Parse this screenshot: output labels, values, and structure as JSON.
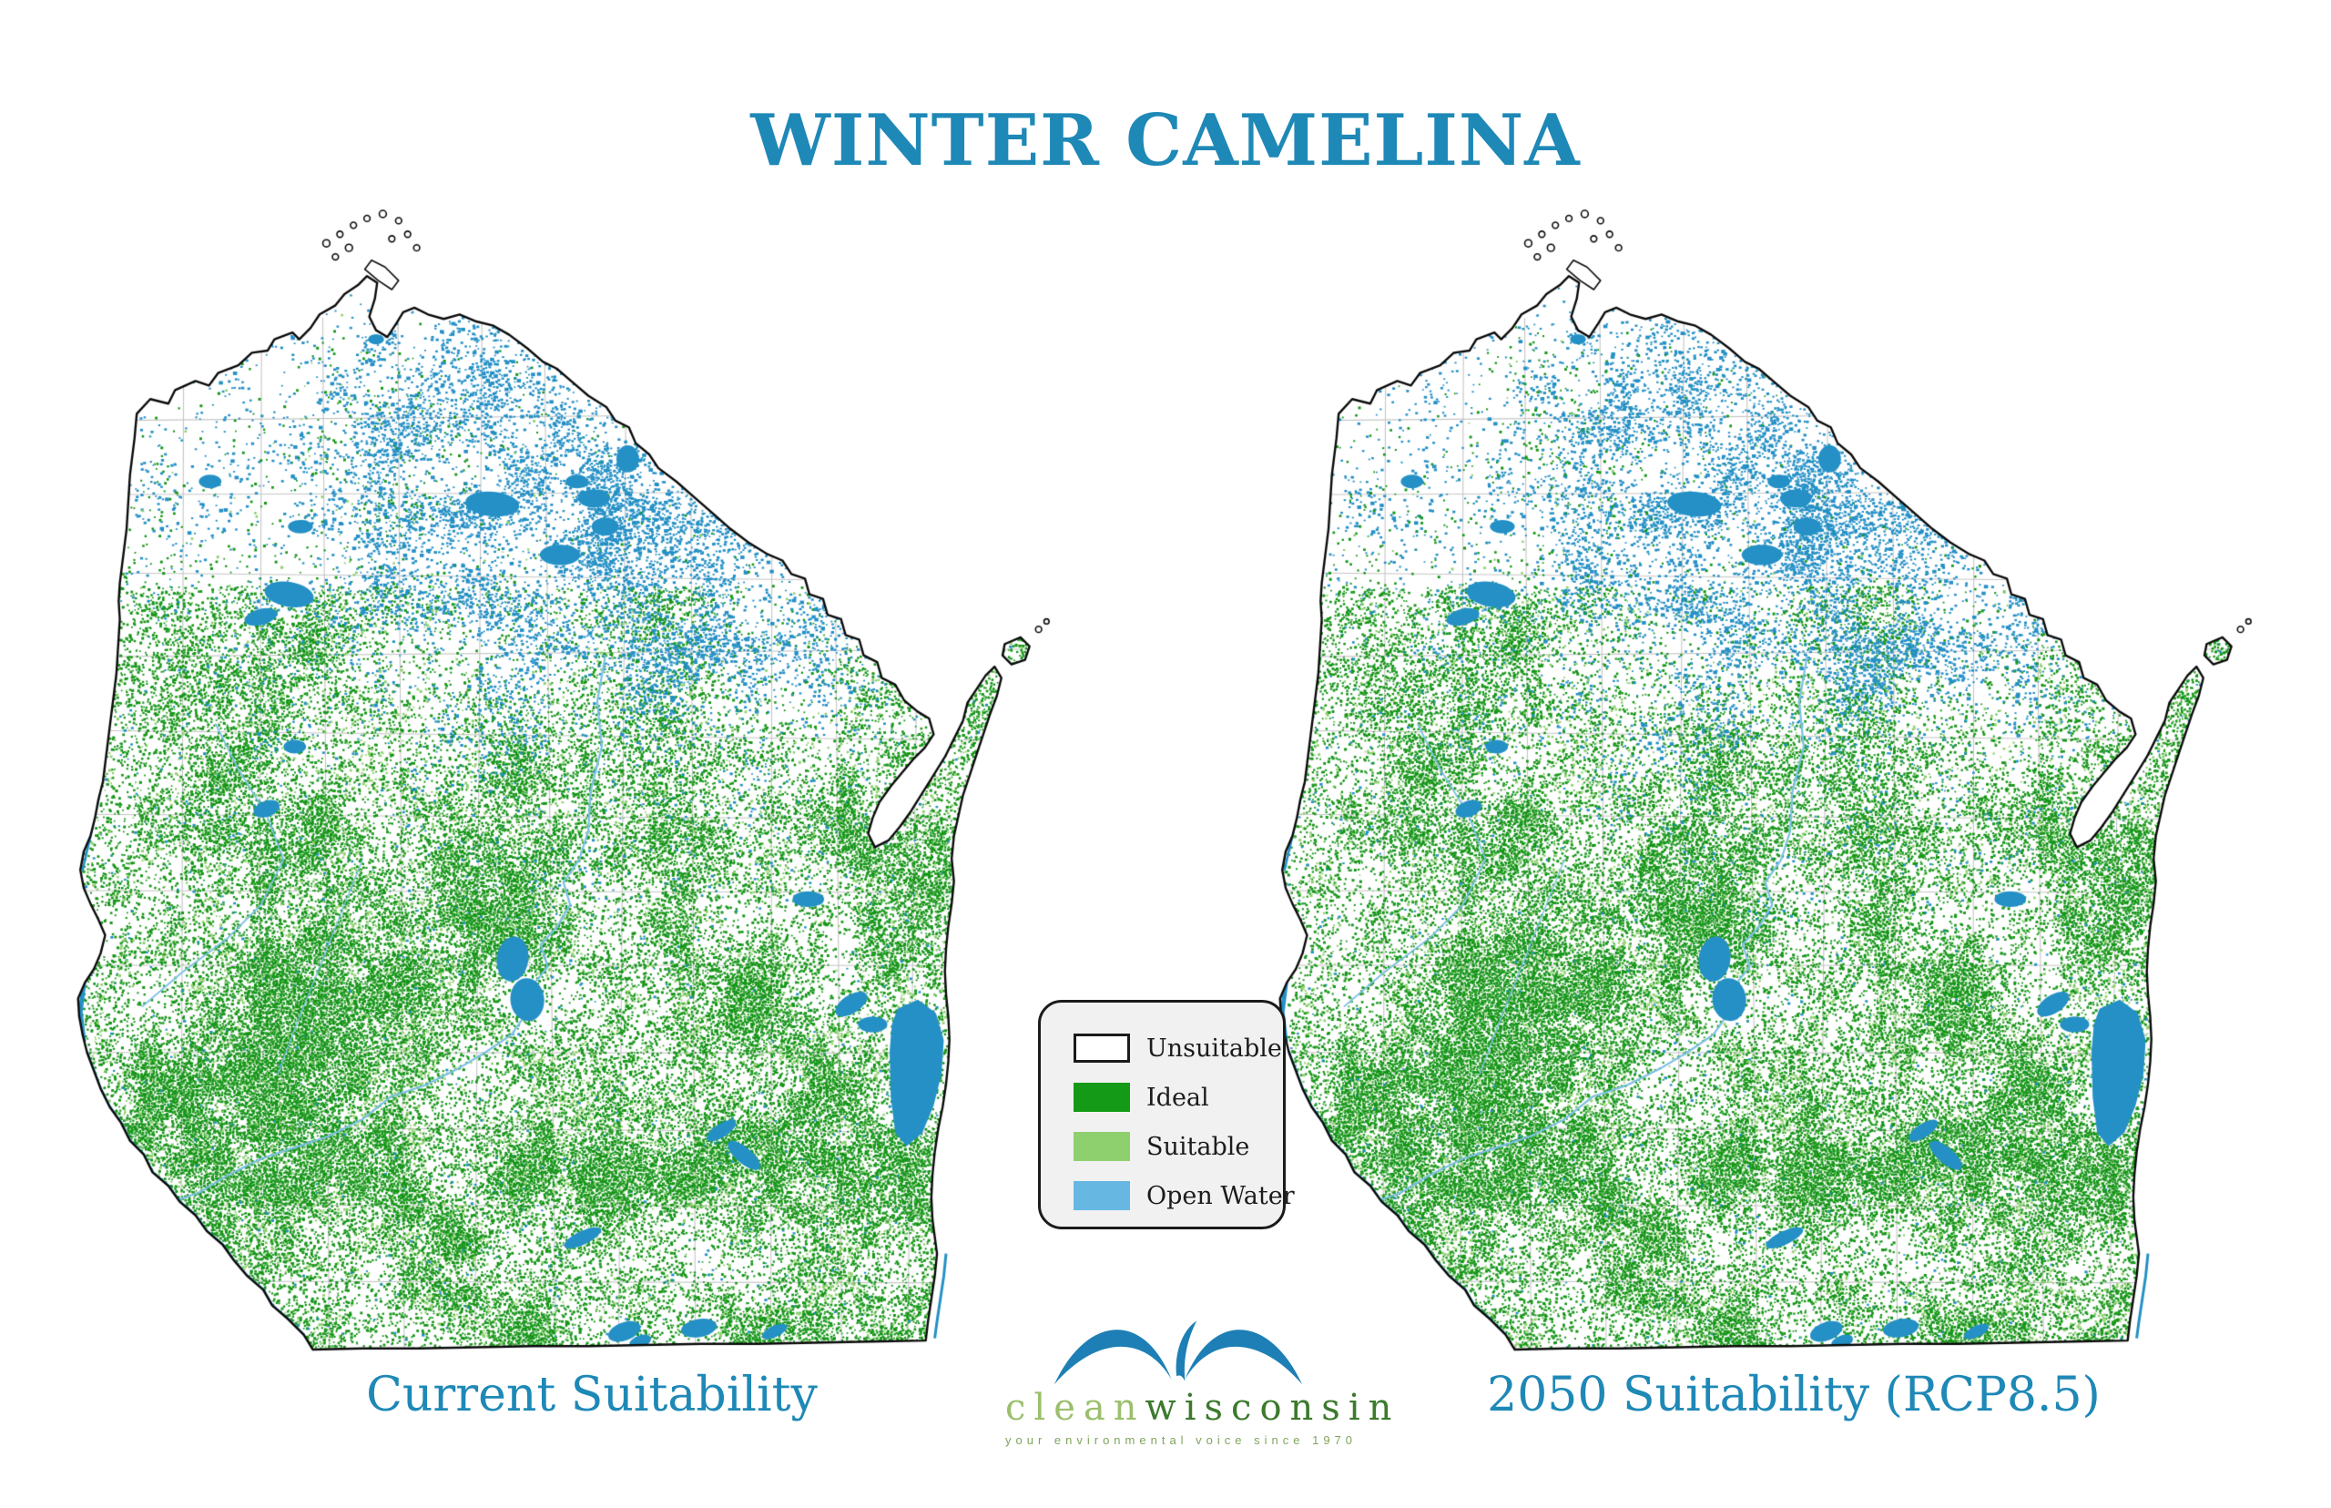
{
  "title": "WINTER CAMELINA",
  "maps": [
    {
      "id": "current",
      "caption": "Current Suitability"
    },
    {
      "id": "2050",
      "caption": "2050 Suitability (RCP8.5)"
    }
  ],
  "legend": {
    "items": [
      {
        "label": "Unsuitable",
        "color": "#ffffff",
        "border": "#1b1b1b"
      },
      {
        "label": "Ideal",
        "color": "#149a16"
      },
      {
        "label": "Suitable",
        "color": "#8ed06e"
      },
      {
        "label": "Open Water",
        "color": "#67b7e3"
      }
    ]
  },
  "logo": {
    "word_light": "clean",
    "word_dark": "wisconsin",
    "tagline": "your environmental voice since 1970"
  },
  "colors": {
    "title_blue": "#1e88b6",
    "ideal_green": "#169618",
    "suitable_green": "#8ed06e",
    "open_water": "#2490c6",
    "river_blue": "#7cc0e4",
    "state_outline": "#0a0a0a",
    "county_line": "#c6c6c6",
    "legend_bg": "#f1f1f1",
    "logo_blue": "#1d7fb5",
    "logo_light_green": "#9bbf6d",
    "logo_dark_green": "#3c7a2e"
  }
}
